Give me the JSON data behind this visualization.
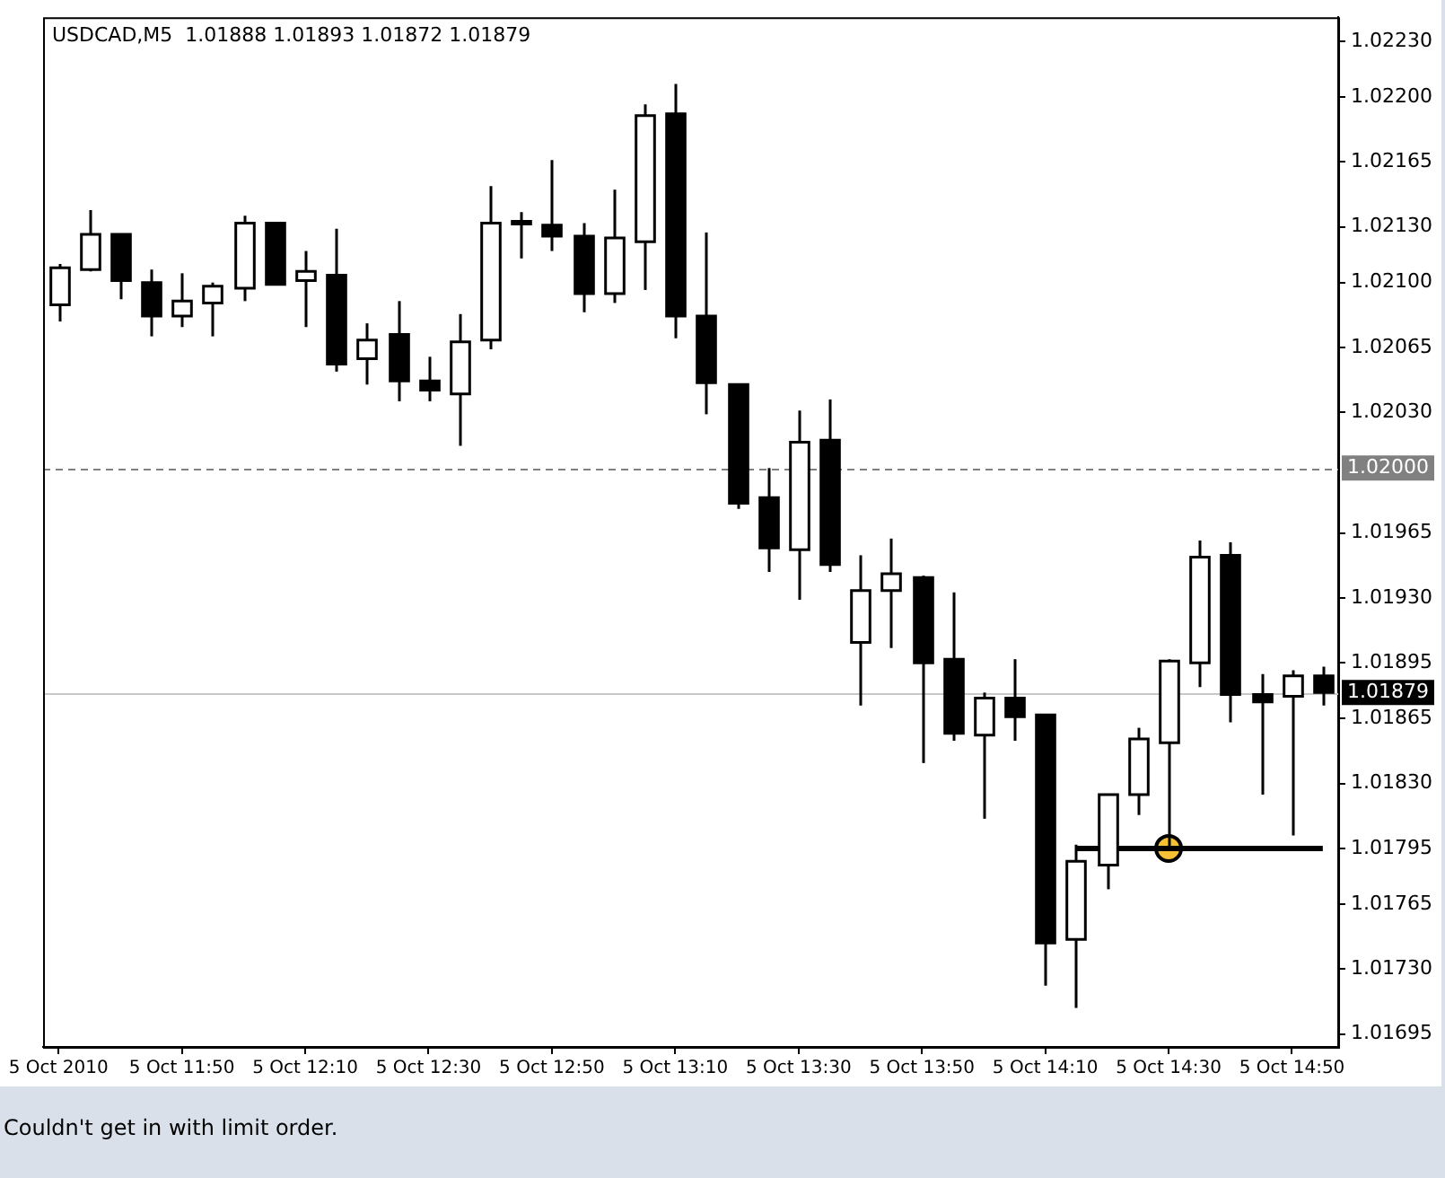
{
  "chart_data": {
    "type": "candlestick",
    "title": "USDCAD,M5  1.01888 1.01893 1.01872 1.01879",
    "annotations": [
      "Couldn't get in with limit order."
    ],
    "categories": [
      "5 Oct 2010",
      null,
      null,
      null,
      "5 Oct 11:50",
      null,
      null,
      null,
      "5 Oct 12:10",
      null,
      null,
      null,
      "5 Oct 12:30",
      null,
      null,
      null,
      "5 Oct 12:50",
      null,
      null,
      null,
      "5 Oct 13:10",
      null,
      null,
      null,
      "5 Oct 13:30",
      null,
      null,
      null,
      "5 Oct 13:50",
      null,
      null,
      null,
      "5 Oct 14:10",
      null,
      null,
      null,
      "5 Oct 14:30",
      null,
      null,
      null,
      "5 Oct 14:50",
      null
    ],
    "ohlc": [
      [
        1.02088,
        1.0211,
        1.02079,
        1.02108
      ],
      [
        1.02107,
        1.02139,
        1.02106,
        1.02126
      ],
      [
        1.02126,
        1.02126,
        1.02091,
        1.02101
      ],
      [
        1.021,
        1.02107,
        1.02071,
        1.02082
      ],
      [
        1.02082,
        1.02105,
        1.02076,
        1.0209
      ],
      [
        1.02089,
        1.021,
        1.02071,
        1.02098
      ],
      [
        1.02097,
        1.02136,
        1.0209,
        1.02132
      ],
      [
        1.02132,
        1.02132,
        1.02099,
        1.02099
      ],
      [
        1.02101,
        1.02117,
        1.02076,
        1.02106
      ],
      [
        1.02104,
        1.02129,
        1.02052,
        1.02056
      ],
      [
        1.02059,
        1.02078,
        1.02045,
        1.02069
      ],
      [
        1.02072,
        1.0209,
        1.02036,
        1.02047
      ],
      [
        1.02047,
        1.0206,
        1.02036,
        1.02042
      ],
      [
        1.0204,
        1.02083,
        1.02012,
        1.02068
      ],
      [
        1.02069,
        1.02152,
        1.02064,
        1.02132
      ],
      [
        1.02132,
        1.02138,
        1.02113,
        1.02133
      ],
      [
        1.02131,
        1.02166,
        1.02117,
        1.02125
      ],
      [
        1.02125,
        1.02132,
        1.02084,
        1.02094
      ],
      [
        1.02094,
        1.0215,
        1.02089,
        1.02124
      ],
      [
        1.02122,
        1.02196,
        1.02096,
        1.0219
      ],
      [
        1.02191,
        1.02207,
        1.0207,
        1.02082
      ],
      [
        1.02082,
        1.02127,
        1.02029,
        1.02046
      ],
      [
        1.02045,
        1.02045,
        1.01978,
        1.01981
      ],
      [
        1.01984,
        1.02,
        1.01944,
        1.01957
      ],
      [
        1.01956,
        1.02031,
        1.01929,
        1.02014
      ],
      [
        1.02015,
        1.02037,
        1.01944,
        1.01948
      ],
      [
        1.01906,
        1.01953,
        1.01872,
        1.01934
      ],
      [
        1.01934,
        1.01962,
        1.01903,
        1.01943
      ],
      [
        1.01941,
        1.01942,
        1.01841,
        1.01895
      ],
      [
        1.01897,
        1.01933,
        1.01853,
        1.01857
      ],
      [
        1.01856,
        1.01879,
        1.01811,
        1.01876
      ],
      [
        1.01876,
        1.01897,
        1.01853,
        1.01866
      ],
      [
        1.01867,
        1.01867,
        1.01721,
        1.01744
      ],
      [
        1.01746,
        1.01797,
        1.01709,
        1.01788
      ],
      [
        1.01786,
        1.01824,
        1.01773,
        1.01824
      ],
      [
        1.01824,
        1.0186,
        1.01813,
        1.01854
      ],
      [
        1.01852,
        1.01897,
        1.01796,
        1.01896
      ],
      [
        1.01895,
        1.01961,
        1.01882,
        1.01952
      ],
      [
        1.01953,
        1.0196,
        1.01863,
        1.01878
      ],
      [
        1.01878,
        1.01889,
        1.01824,
        1.01874
      ],
      [
        1.01877,
        1.01891,
        1.01802,
        1.01888
      ],
      [
        1.01888,
        1.01893,
        1.01872,
        1.01879
      ]
    ],
    "series": [
      {
        "type": "line",
        "values": [
          null,
          null,
          null,
          null,
          null,
          null,
          null,
          null,
          null,
          null,
          null,
          null,
          null,
          null,
          null,
          null,
          null,
          null,
          null,
          null,
          null,
          null,
          null,
          null,
          null,
          null,
          null,
          null,
          null,
          null,
          null,
          null,
          null,
          1.01795,
          1.01795,
          1.01795,
          1.01795,
          1.01795,
          1.01795,
          1.01795,
          1.01795,
          1.01795
        ],
        "color": "#000000",
        "marker": "none"
      },
      {
        "type": "scatter",
        "values": [
          null,
          null,
          null,
          null,
          null,
          null,
          null,
          null,
          null,
          null,
          null,
          null,
          null,
          null,
          null,
          null,
          null,
          null,
          null,
          null,
          null,
          null,
          null,
          null,
          null,
          null,
          null,
          null,
          null,
          null,
          null,
          null,
          null,
          null,
          null,
          null,
          1.01795,
          null,
          null,
          null,
          null,
          null
        ],
        "color": "#f5c033",
        "marker": "circle"
      }
    ],
    "ylim": [
      1.01688,
      1.02243
    ],
    "yticks": [
      {
        "value": 1.0223,
        "label": "1.02230"
      },
      {
        "value": 1.022,
        "label": "1.02200"
      },
      {
        "value": 1.02165,
        "label": "1.02165"
      },
      {
        "value": 1.0213,
        "label": "1.02130"
      },
      {
        "value": 1.021,
        "label": "1.02100"
      },
      {
        "value": 1.02065,
        "label": "1.02065"
      },
      {
        "value": 1.0203,
        "label": "1.02030"
      },
      {
        "value": 1.01965,
        "label": "1.01965"
      },
      {
        "value": 1.0193,
        "label": "1.01930"
      },
      {
        "value": 1.01895,
        "label": "1.01895"
      },
      {
        "value": 1.01865,
        "label": "1.01865"
      },
      {
        "value": 1.0183,
        "label": "1.01830"
      },
      {
        "value": 1.01795,
        "label": "1.01795"
      },
      {
        "value": 1.01765,
        "label": "1.01765"
      },
      {
        "value": 1.0173,
        "label": "1.01730"
      },
      {
        "value": 1.01695,
        "label": "1.01695"
      }
    ],
    "ref_lines": [
      {
        "axis": "y",
        "value": 1.02,
        "label": "1.02000",
        "color": "#808080",
        "line_style": "dashed"
      },
      {
        "axis": "y",
        "value": 1.01879,
        "label": "1.01879",
        "color": "#c8c8c8",
        "line_style": "solid"
      }
    ],
    "grid": false,
    "legend": false
  }
}
